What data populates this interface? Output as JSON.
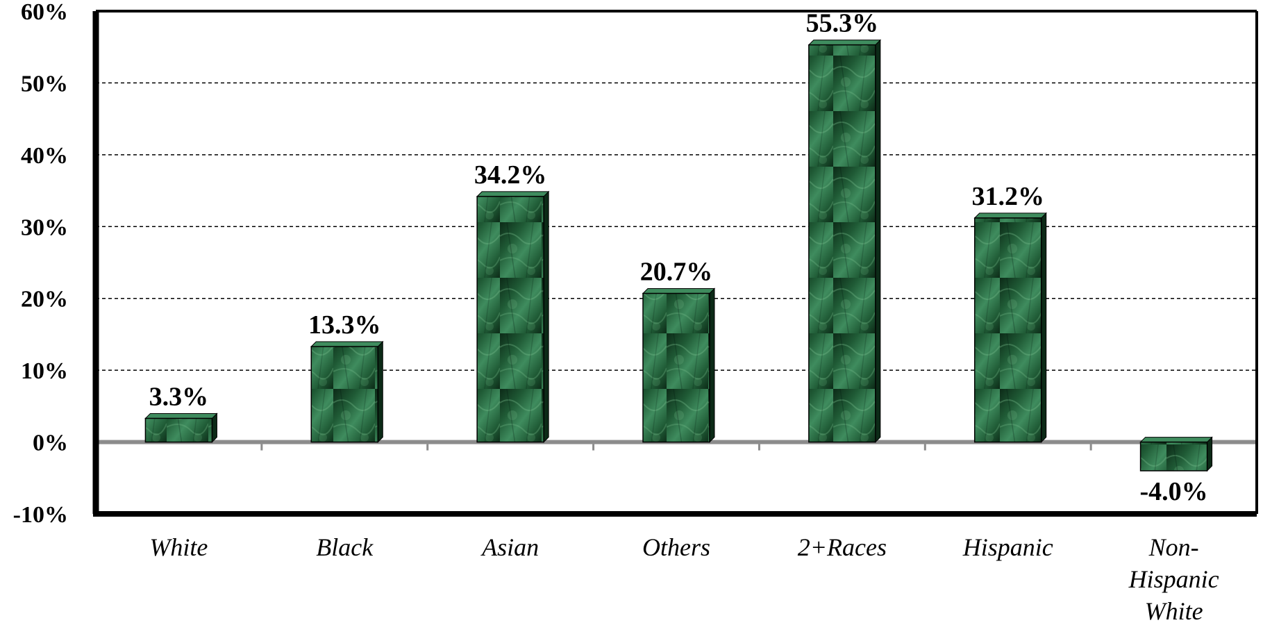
{
  "chart_data": {
    "type": "bar",
    "title": "",
    "xlabel": "",
    "ylabel": "",
    "categories": [
      "White",
      "Black",
      "Asian",
      "Others",
      "2+Races",
      "Hispanic",
      "Non-Hispanic White"
    ],
    "category_lines": [
      [
        "White"
      ],
      [
        "Black"
      ],
      [
        "Asian"
      ],
      [
        "Others"
      ],
      [
        "2+Races"
      ],
      [
        "Hispanic"
      ],
      [
        "Non-",
        "Hispanic",
        "White"
      ]
    ],
    "values": [
      3.3,
      13.3,
      34.2,
      20.7,
      55.3,
      31.2,
      -4.0
    ],
    "data_labels": [
      "3.3%",
      "13.3%",
      "34.2%",
      "20.7%",
      "55.3%",
      "31.2%",
      "-4.0%"
    ],
    "ylim": [
      -10,
      60
    ],
    "yticks": [
      -10,
      0,
      10,
      20,
      30,
      40,
      50,
      60
    ],
    "ytick_labels": [
      "-10%",
      "0%",
      "10%",
      "20%",
      "30%",
      "40%",
      "50%",
      "60%"
    ],
    "grid": "horizontal dashed",
    "legend": "none",
    "colors": {
      "bar_fill": "#1f5a35",
      "bar_light": "#3f8c5e",
      "bar_dark": "#0c2a17",
      "zero_line": "#8c8c8c",
      "grid": "#000000",
      "frame": "#000000"
    }
  }
}
